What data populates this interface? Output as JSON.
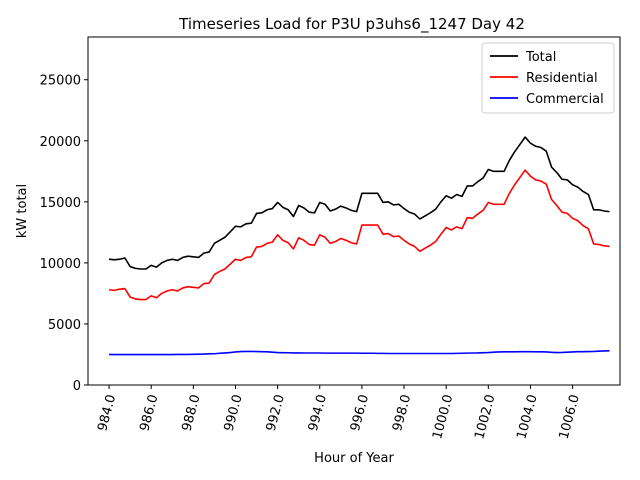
{
  "chart_data": {
    "type": "line",
    "title": "Timeseries Load for P3U p3uhs6_1247  Day 42",
    "xlabel": "Hour of Year",
    "ylabel": "kW total",
    "xlim": [
      983.0,
      1008.25
    ],
    "ylim": [
      0,
      28500
    ],
    "xticks": [
      984,
      986,
      988,
      990,
      992,
      994,
      996,
      998,
      1000,
      1002,
      1004,
      1006
    ],
    "xtick_labels": [
      "984.0",
      "986.0",
      "988.0",
      "990.0",
      "992.0",
      "994.0",
      "996.0",
      "998.0",
      "1000.0",
      "1002.0",
      "1004.0",
      "1006.0"
    ],
    "yticks": [
      0,
      5000,
      10000,
      15000,
      20000,
      25000
    ],
    "ytick_labels": [
      "0",
      "5000",
      "10000",
      "15000",
      "20000",
      "25000"
    ],
    "legend_position": "top-right",
    "x_start": 984.0,
    "x_step": 0.25,
    "series": [
      {
        "name": "Total",
        "color": "#000000",
        "values": [
          10300,
          10250,
          10300,
          10400,
          9700,
          9550,
          9500,
          9500,
          9800,
          9650,
          10000,
          10200,
          10300,
          10200,
          10450,
          10550,
          10500,
          10450,
          10800,
          10900,
          11600,
          11850,
          12100,
          12550,
          13000,
          12950,
          13200,
          13250,
          14050,
          14100,
          14350,
          14450,
          14950,
          14550,
          14350,
          13800,
          14700,
          14500,
          14150,
          14100,
          14950,
          14800,
          14250,
          14400,
          14650,
          14500,
          14300,
          14200,
          15700,
          15700,
          15700,
          15700,
          14950,
          15000,
          14750,
          14800,
          14450,
          14150,
          14000,
          13600,
          13850,
          14100,
          14400,
          15000,
          15500,
          15300,
          15600,
          15450,
          16300,
          16300,
          16650,
          16950,
          17650,
          17500,
          17500,
          17500,
          18400,
          19100,
          19700,
          20300,
          19800,
          19550,
          19450,
          19150,
          17850,
          17400,
          16850,
          16800,
          16400,
          16200,
          15850,
          15600,
          14350,
          14350,
          14250,
          14200
        ]
      },
      {
        "name": "Residential",
        "color": "#ff0000",
        "values": [
          7800,
          7750,
          7850,
          7900,
          7200,
          7050,
          7000,
          7000,
          7300,
          7150,
          7500,
          7700,
          7800,
          7700,
          7950,
          8050,
          8000,
          7950,
          8300,
          8350,
          9050,
          9300,
          9500,
          9900,
          10300,
          10200,
          10450,
          10500,
          11300,
          11350,
          11600,
          11700,
          12300,
          11850,
          11650,
          11150,
          12050,
          11850,
          11500,
          11450,
          12300,
          12100,
          11600,
          11750,
          12000,
          11850,
          11650,
          11550,
          13100,
          13100,
          13100,
          13100,
          12350,
          12400,
          12150,
          12200,
          11850,
          11550,
          11350,
          10950,
          11200,
          11450,
          11750,
          12350,
          12900,
          12700,
          12950,
          12800,
          13700,
          13650,
          14000,
          14300,
          14950,
          14800,
          14800,
          14800,
          15700,
          16400,
          17000,
          17600,
          17100,
          16800,
          16700,
          16450,
          15200,
          14700,
          14150,
          14050,
          13650,
          13450,
          13050,
          12800,
          11550,
          11500,
          11400,
          11350
        ]
      },
      {
        "name": "Commercial",
        "color": "#0000ff",
        "values": [
          2500,
          2490,
          2490,
          2490,
          2490,
          2490,
          2490,
          2490,
          2490,
          2490,
          2490,
          2490,
          2490,
          2500,
          2500,
          2500,
          2510,
          2520,
          2530,
          2550,
          2560,
          2600,
          2630,
          2660,
          2710,
          2740,
          2750,
          2750,
          2740,
          2730,
          2720,
          2690,
          2660,
          2650,
          2640,
          2630,
          2630,
          2620,
          2620,
          2620,
          2620,
          2610,
          2610,
          2610,
          2610,
          2610,
          2610,
          2610,
          2600,
          2600,
          2600,
          2590,
          2590,
          2580,
          2580,
          2580,
          2580,
          2580,
          2580,
          2580,
          2580,
          2580,
          2580,
          2580,
          2580,
          2580,
          2590,
          2600,
          2610,
          2620,
          2630,
          2650,
          2660,
          2690,
          2710,
          2720,
          2720,
          2720,
          2730,
          2730,
          2730,
          2720,
          2720,
          2710,
          2680,
          2660,
          2670,
          2690,
          2710,
          2730,
          2730,
          2740,
          2750,
          2770,
          2790,
          2800
        ]
      }
    ]
  }
}
